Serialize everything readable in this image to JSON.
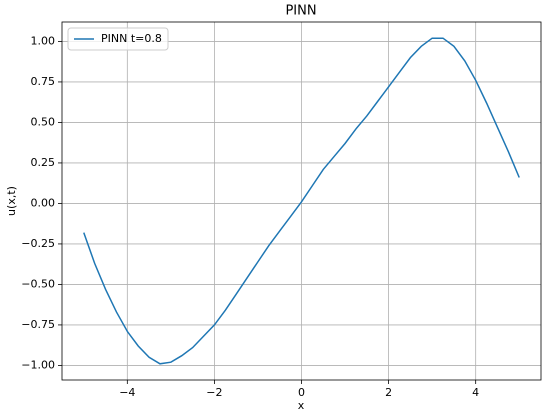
{
  "chart_data": {
    "type": "line",
    "title": "PINN",
    "x_label": "x",
    "y_label": "u(x,t)",
    "x": [
      -5,
      -4.75,
      -4.5,
      -4.25,
      -4,
      -3.75,
      -3.5,
      -3.25,
      -3,
      -2.75,
      -2.5,
      -2.25,
      -2,
      -1.75,
      -1.5,
      -1.25,
      -1,
      -0.75,
      -0.5,
      -0.25,
      0,
      0.25,
      0.5,
      0.75,
      1,
      1.25,
      1.5,
      1.75,
      2,
      2.25,
      2.5,
      2.75,
      3,
      3.25,
      3.5,
      3.75,
      4,
      4.25,
      4.5,
      4.75,
      5
    ],
    "series": [
      {
        "name": "PINN t=0.8",
        "color": "#1f77b4",
        "values": [
          -0.18,
          -0.37,
          -0.53,
          -0.67,
          -0.79,
          -0.88,
          -0.95,
          -0.99,
          -0.98,
          -0.94,
          -0.89,
          -0.82,
          -0.75,
          -0.66,
          -0.56,
          -0.46,
          -0.36,
          -0.26,
          -0.17,
          -0.08,
          0.01,
          0.11,
          0.21,
          0.29,
          0.37,
          0.46,
          0.54,
          0.63,
          0.72,
          0.81,
          0.9,
          0.97,
          1.02,
          1.02,
          0.97,
          0.88,
          0.76,
          0.62,
          0.47,
          0.32,
          0.16
        ]
      }
    ],
    "xlim": [
      -5.5,
      5.5
    ],
    "ylim": [
      -1.09,
      1.12
    ],
    "xticks": [
      {
        "value": -4,
        "label": "−4"
      },
      {
        "value": -2,
        "label": "−2"
      },
      0,
      2,
      4
    ],
    "yticks": [
      {
        "value": -1,
        "label": "−1.00"
      },
      {
        "value": -0.75,
        "label": "−0.75"
      },
      {
        "value": -0.5,
        "label": "−0.50"
      },
      {
        "value": -0.25,
        "label": "−0.25"
      },
      {
        "value": 0,
        "label": "0.00"
      },
      {
        "value": 0.25,
        "label": "0.25"
      },
      {
        "value": 0.5,
        "label": "0.50"
      },
      {
        "value": 0.75,
        "label": "0.75"
      },
      {
        "value": 1,
        "label": "1.00"
      }
    ],
    "grid": true,
    "legend": "upper-left"
  }
}
